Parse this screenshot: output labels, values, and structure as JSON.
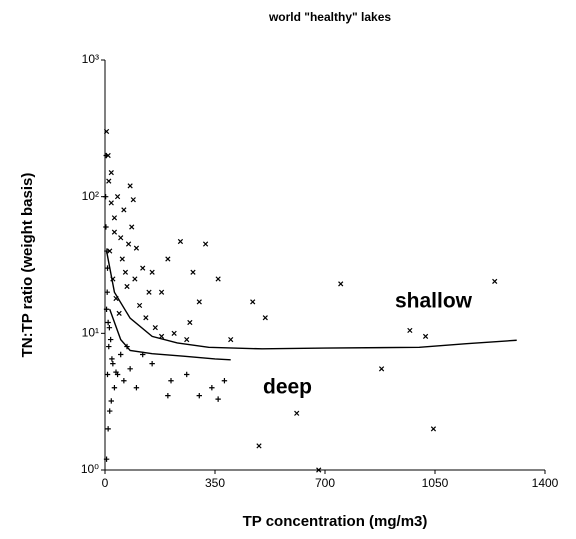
{
  "chart_data": {
    "type": "scatter",
    "title": "world \"healthy\" lakes",
    "xlabel": "TP  concentration (mg/m3)",
    "ylabel": "TN:TP ratio (weight basis)",
    "xlim": [
      0,
      1400
    ],
    "xticks": [
      0,
      350,
      700,
      1050,
      1400
    ],
    "ylim": [
      1,
      1000
    ],
    "ylog": true,
    "yticks": [
      {
        "value": 1,
        "label": "10⁰"
      },
      {
        "value": 10,
        "label": "10¹"
      },
      {
        "value": 100,
        "label": "10²"
      },
      {
        "value": 1000,
        "label": "10³"
      }
    ],
    "color": "#000000",
    "series": [
      {
        "name": "shallow",
        "marker": "x",
        "x": [
          1240,
          750,
          970,
          1020,
          880,
          1045,
          680,
          490,
          610,
          510,
          470,
          360,
          300,
          240,
          320,
          280,
          270,
          200,
          180,
          150,
          120,
          100,
          90,
          80,
          60,
          50,
          40,
          30,
          20,
          10,
          5,
          15,
          25,
          35,
          45,
          70,
          110,
          130,
          160,
          220,
          260,
          400,
          180,
          85,
          55,
          65,
          140,
          95,
          75,
          30,
          20,
          12
        ],
        "values": [
          24,
          23,
          10.5,
          9.5,
          5.5,
          2,
          1,
          1.5,
          2.6,
          13,
          17,
          25,
          17,
          47,
          45,
          28,
          12,
          35,
          20,
          28,
          30,
          42,
          95,
          120,
          80,
          50,
          100,
          70,
          150,
          200,
          300,
          40,
          25,
          18,
          14,
          22,
          16,
          13,
          11,
          10,
          9,
          9,
          9.5,
          60,
          35,
          28,
          20,
          25,
          45,
          55,
          90,
          130
        ]
      },
      {
        "name": "deep",
        "marker": "+",
        "x": [
          5,
          10,
          15,
          20,
          8,
          12,
          25,
          30,
          40,
          60,
          80,
          100,
          150,
          200,
          210,
          260,
          300,
          340,
          360,
          380,
          5,
          8,
          3,
          2,
          6,
          10,
          18,
          50,
          70,
          120,
          4,
          7,
          14,
          22,
          35
        ],
        "values": [
          1.2,
          2,
          2.7,
          3.2,
          5,
          8,
          6,
          4,
          5,
          4.5,
          5.5,
          4,
          6,
          3.5,
          4.5,
          5,
          3.5,
          4,
          3.3,
          4.5,
          15,
          30,
          60,
          100,
          40,
          12,
          9,
          7,
          8,
          7,
          200,
          20,
          11,
          6.5,
          5.2
        ]
      }
    ],
    "fits": [
      {
        "x": [
          5,
          30,
          80,
          150,
          230,
          330,
          500,
          700,
          1000,
          1150,
          1310
        ],
        "values": [
          40,
          20,
          12.9,
          9.5,
          8.5,
          7.9,
          7.7,
          7.8,
          7.9,
          8.4,
          8.9
        ]
      },
      {
        "x": [
          15,
          50,
          80,
          150,
          250,
          350,
          400
        ],
        "values": [
          15,
          9,
          7.5,
          7.1,
          6.8,
          6.5,
          6.4
        ]
      }
    ]
  }
}
